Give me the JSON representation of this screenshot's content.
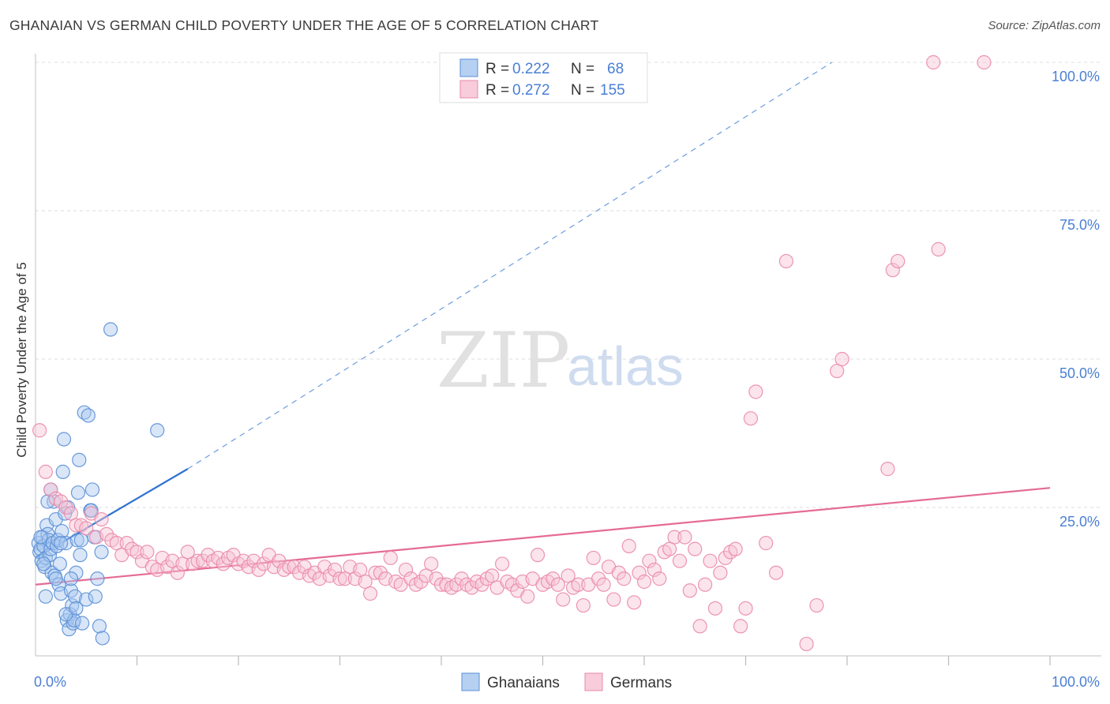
{
  "title": "GHANAIAN VS GERMAN CHILD POVERTY UNDER THE AGE OF 5 CORRELATION CHART",
  "source": "Source: ZipAtlas.com",
  "watermark": {
    "zip": "ZIP",
    "atlas": "atlas"
  },
  "legend_top": [
    {
      "r_label": "R =",
      "r_value": "0.222",
      "n_label": "N =",
      "n_value": "68",
      "color": "#a9c8f0",
      "stroke": "#6f9fdc"
    },
    {
      "r_label": "R =",
      "r_value": "0.272",
      "n_label": "N =",
      "n_value": "155",
      "color": "#f7c3d4",
      "stroke": "#ee8fb0"
    }
  ],
  "legend_bottom": [
    "Ghanaians",
    "Germans"
  ],
  "colors": {
    "ghanaian_fill": "#a9c8f0",
    "ghanaian_stroke": "#5b8fd6",
    "ghanaian_line": "#2f72d0",
    "german_fill": "#f7c3d4",
    "german_stroke": "#ea8aaa",
    "german_line": "#e56b95",
    "tick": "#4a7fd4",
    "grid": "#dddddd"
  },
  "chart_data": {
    "type": "scatter",
    "title": "GHANAIAN VS GERMAN CHILD POVERTY UNDER THE AGE OF 5 CORRELATION CHART",
    "xlabel": "",
    "ylabel": "Child Poverty Under the Age of 5",
    "xlim": [
      0,
      100
    ],
    "ylim": [
      0,
      100
    ],
    "x_tick_labels": [
      "0.0%",
      "100.0%"
    ],
    "y_ticks": [
      25,
      50,
      75,
      100
    ],
    "y_tick_labels": [
      "25.0%",
      "50.0%",
      "75.0%",
      "100.0%"
    ],
    "grid": true,
    "series": [
      {
        "name": "Ghanaians",
        "r": 0.222,
        "n": 68,
        "trend": {
          "x0": 0,
          "y0": 16.5,
          "x1": 15,
          "y1": 31.5,
          "dashed_to_x": 78.5,
          "dashed_to_y": 100
        },
        "points": [
          [
            0.3,
            19
          ],
          [
            0.4,
            17.5
          ],
          [
            0.5,
            18
          ],
          [
            0.6,
            16
          ],
          [
            0.7,
            20
          ],
          [
            0.8,
            18.5
          ],
          [
            0.9,
            15
          ],
          [
            1.0,
            16.5
          ],
          [
            1.1,
            22
          ],
          [
            1.2,
            20.5
          ],
          [
            1.3,
            19.5
          ],
          [
            1.4,
            17
          ],
          [
            1.5,
            18
          ],
          [
            1.6,
            14
          ],
          [
            1.7,
            19
          ],
          [
            1.8,
            26
          ],
          [
            1.9,
            13.5
          ],
          [
            2.0,
            23
          ],
          [
            2.1,
            18.5
          ],
          [
            2.2,
            19.5
          ],
          [
            2.3,
            12
          ],
          [
            2.4,
            15.5
          ],
          [
            2.5,
            10.5
          ],
          [
            2.6,
            21
          ],
          [
            2.7,
            31
          ],
          [
            2.8,
            36.5
          ],
          [
            2.9,
            24
          ],
          [
            3.0,
            19
          ],
          [
            3.1,
            6
          ],
          [
            3.2,
            25
          ],
          [
            3.3,
            4.5
          ],
          [
            3.4,
            7
          ],
          [
            3.5,
            11
          ],
          [
            3.6,
            8.5
          ],
          [
            3.7,
            5.5
          ],
          [
            3.8,
            6
          ],
          [
            3.9,
            10
          ],
          [
            4.0,
            14
          ],
          [
            4.1,
            19.5
          ],
          [
            4.2,
            27.5
          ],
          [
            4.3,
            33
          ],
          [
            4.4,
            17
          ],
          [
            4.5,
            19.5
          ],
          [
            4.6,
            5.5
          ],
          [
            4.8,
            41
          ],
          [
            5.0,
            9.5
          ],
          [
            5.2,
            40.5
          ],
          [
            5.4,
            24.5
          ],
          [
            5.5,
            24.5
          ],
          [
            5.6,
            28
          ],
          [
            5.8,
            20
          ],
          [
            5.9,
            10
          ],
          [
            6.1,
            13
          ],
          [
            6.3,
            5
          ],
          [
            6.5,
            17.5
          ],
          [
            6.6,
            3
          ],
          [
            7.4,
            55
          ],
          [
            12.0,
            38
          ],
          [
            0.5,
            20
          ],
          [
            1.0,
            10
          ],
          [
            1.5,
            28
          ],
          [
            2.0,
            13
          ],
          [
            2.5,
            19
          ],
          [
            3.0,
            7
          ],
          [
            3.5,
            13
          ],
          [
            4.0,
            8
          ],
          [
            1.2,
            26
          ],
          [
            0.8,
            15.5
          ]
        ]
      },
      {
        "name": "Germans",
        "r": 0.272,
        "n": 155,
        "trend": {
          "x0": 0,
          "y0": 12,
          "x1": 100,
          "y1": 28.3
        },
        "points": [
          [
            0.4,
            38
          ],
          [
            1.0,
            31
          ],
          [
            1.5,
            28
          ],
          [
            2.0,
            26.5
          ],
          [
            2.5,
            26
          ],
          [
            3.0,
            25
          ],
          [
            3.5,
            24
          ],
          [
            4.0,
            22
          ],
          [
            4.5,
            22
          ],
          [
            5.0,
            21.5
          ],
          [
            5.5,
            24
          ],
          [
            6.0,
            20
          ],
          [
            6.5,
            23
          ],
          [
            7.0,
            20.5
          ],
          [
            7.5,
            19.5
          ],
          [
            8.0,
            19
          ],
          [
            8.5,
            17
          ],
          [
            9.0,
            19
          ],
          [
            9.5,
            18
          ],
          [
            10.0,
            17.5
          ],
          [
            10.5,
            16
          ],
          [
            11.0,
            17.5
          ],
          [
            11.5,
            15
          ],
          [
            12.0,
            14.5
          ],
          [
            12.5,
            16.5
          ],
          [
            13.0,
            15
          ],
          [
            13.5,
            16
          ],
          [
            14.0,
            14
          ],
          [
            14.5,
            15.5
          ],
          [
            15.0,
            17.5
          ],
          [
            15.5,
            15.5
          ],
          [
            16.0,
            16
          ],
          [
            16.5,
            16
          ],
          [
            17.0,
            17
          ],
          [
            17.5,
            16
          ],
          [
            18.0,
            16.5
          ],
          [
            18.5,
            15.5
          ],
          [
            19.0,
            16.5
          ],
          [
            19.5,
            17
          ],
          [
            20.0,
            15.5
          ],
          [
            20.5,
            16
          ],
          [
            21.0,
            15
          ],
          [
            21.5,
            16
          ],
          [
            22.0,
            14.5
          ],
          [
            22.5,
            15.5
          ],
          [
            23.0,
            17
          ],
          [
            23.5,
            15
          ],
          [
            24.0,
            16
          ],
          [
            24.5,
            14.5
          ],
          [
            25.0,
            15
          ],
          [
            25.5,
            15
          ],
          [
            26.0,
            14
          ],
          [
            26.5,
            15
          ],
          [
            27.0,
            13.5
          ],
          [
            27.5,
            14
          ],
          [
            28.0,
            13
          ],
          [
            28.5,
            15
          ],
          [
            29.0,
            13.5
          ],
          [
            29.5,
            14.5
          ],
          [
            30.0,
            13
          ],
          [
            30.5,
            13
          ],
          [
            31.0,
            15
          ],
          [
            31.5,
            13
          ],
          [
            32.0,
            14.5
          ],
          [
            32.5,
            12.5
          ],
          [
            33.0,
            10.5
          ],
          [
            33.5,
            14
          ],
          [
            34.0,
            14
          ],
          [
            34.5,
            13
          ],
          [
            35.0,
            16.5
          ],
          [
            35.5,
            12.5
          ],
          [
            36.0,
            12
          ],
          [
            36.5,
            14.5
          ],
          [
            37.0,
            13
          ],
          [
            37.5,
            12
          ],
          [
            38.0,
            12.5
          ],
          [
            38.5,
            13.5
          ],
          [
            39.0,
            15.5
          ],
          [
            39.5,
            13
          ],
          [
            40.0,
            12
          ],
          [
            40.5,
            12
          ],
          [
            41.0,
            11.5
          ],
          [
            41.5,
            12
          ],
          [
            42.0,
            13
          ],
          [
            42.5,
            12
          ],
          [
            43.0,
            11.5
          ],
          [
            43.5,
            12.5
          ],
          [
            44.0,
            12
          ],
          [
            44.5,
            13
          ],
          [
            45.0,
            13.5
          ],
          [
            45.5,
            11.5
          ],
          [
            46.0,
            15.5
          ],
          [
            46.5,
            12.5
          ],
          [
            47.0,
            12
          ],
          [
            47.5,
            11
          ],
          [
            48.0,
            12.5
          ],
          [
            48.5,
            10
          ],
          [
            49.0,
            13
          ],
          [
            49.5,
            17
          ],
          [
            50.0,
            12
          ],
          [
            50.5,
            12.5
          ],
          [
            51.0,
            13
          ],
          [
            51.5,
            12
          ],
          [
            52.0,
            9.5
          ],
          [
            52.5,
            13.5
          ],
          [
            53.0,
            11.5
          ],
          [
            53.5,
            12
          ],
          [
            54.0,
            8.5
          ],
          [
            54.5,
            12
          ],
          [
            55.0,
            16.5
          ],
          [
            55.5,
            13
          ],
          [
            56.0,
            12
          ],
          [
            56.5,
            15
          ],
          [
            57.0,
            9.5
          ],
          [
            57.5,
            14
          ],
          [
            58.0,
            13
          ],
          [
            58.5,
            18.5
          ],
          [
            59.0,
            9
          ],
          [
            59.5,
            14
          ],
          [
            60.0,
            12.5
          ],
          [
            60.5,
            16
          ],
          [
            61.0,
            14.5
          ],
          [
            61.5,
            13
          ],
          [
            62.0,
            17.5
          ],
          [
            62.5,
            18
          ],
          [
            63.0,
            20
          ],
          [
            63.5,
            16
          ],
          [
            64.0,
            20
          ],
          [
            64.5,
            11
          ],
          [
            65.0,
            18
          ],
          [
            65.5,
            5
          ],
          [
            66.0,
            12
          ],
          [
            66.5,
            16
          ],
          [
            67.0,
            8
          ],
          [
            67.5,
            14
          ],
          [
            68.0,
            16.5
          ],
          [
            68.5,
            17.5
          ],
          [
            69.0,
            18
          ],
          [
            69.5,
            5
          ],
          [
            70.0,
            8
          ],
          [
            70.5,
            40
          ],
          [
            71.0,
            44.5
          ],
          [
            72.0,
            19
          ],
          [
            73.0,
            14
          ],
          [
            74.0,
            66.5
          ],
          [
            76.0,
            2
          ],
          [
            77.0,
            8.5
          ],
          [
            79.0,
            48
          ],
          [
            79.5,
            50
          ],
          [
            84.0,
            31.5
          ],
          [
            84.5,
            65
          ],
          [
            85.0,
            66.5
          ],
          [
            88.5,
            100
          ],
          [
            89.0,
            68.5
          ],
          [
            93.5,
            100
          ]
        ]
      }
    ]
  }
}
